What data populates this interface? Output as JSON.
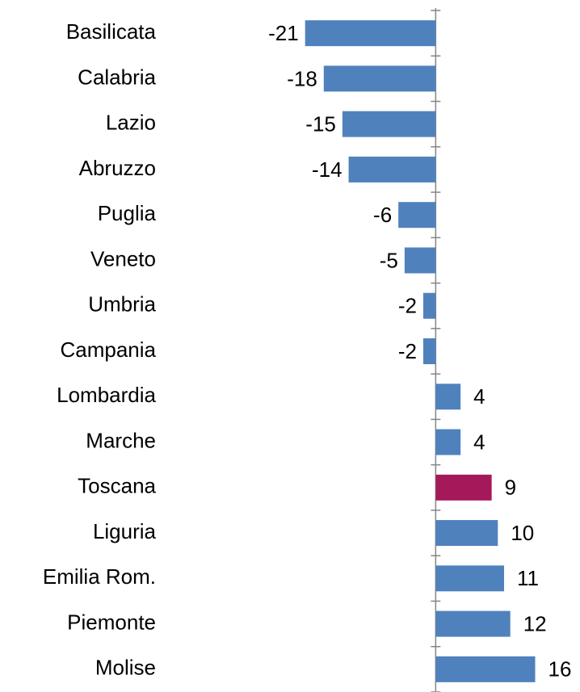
{
  "chart_data": {
    "type": "barh",
    "categories": [
      "Basilicata",
      "Calabria",
      "Lazio",
      "Abruzzo",
      "Puglia",
      "Veneto",
      "Umbria",
      "Campania",
      "Lombardia",
      "Marche",
      "Toscana",
      "Liguria",
      "Emilia Rom.",
      "Piemonte",
      "Molise"
    ],
    "values": [
      -21,
      -18,
      -15,
      -14,
      -6,
      -5,
      -2,
      -2,
      4,
      4,
      9,
      10,
      11,
      12,
      16
    ],
    "colors": [
      "#4f81bd",
      "#4f81bd",
      "#4f81bd",
      "#4f81bd",
      "#4f81bd",
      "#4f81bd",
      "#4f81bd",
      "#4f81bd",
      "#4f81bd",
      "#4f81bd",
      "#a5195b",
      "#4f81bd",
      "#4f81bd",
      "#4f81bd",
      "#4f81bd"
    ],
    "xlim": [
      -22,
      21
    ]
  }
}
